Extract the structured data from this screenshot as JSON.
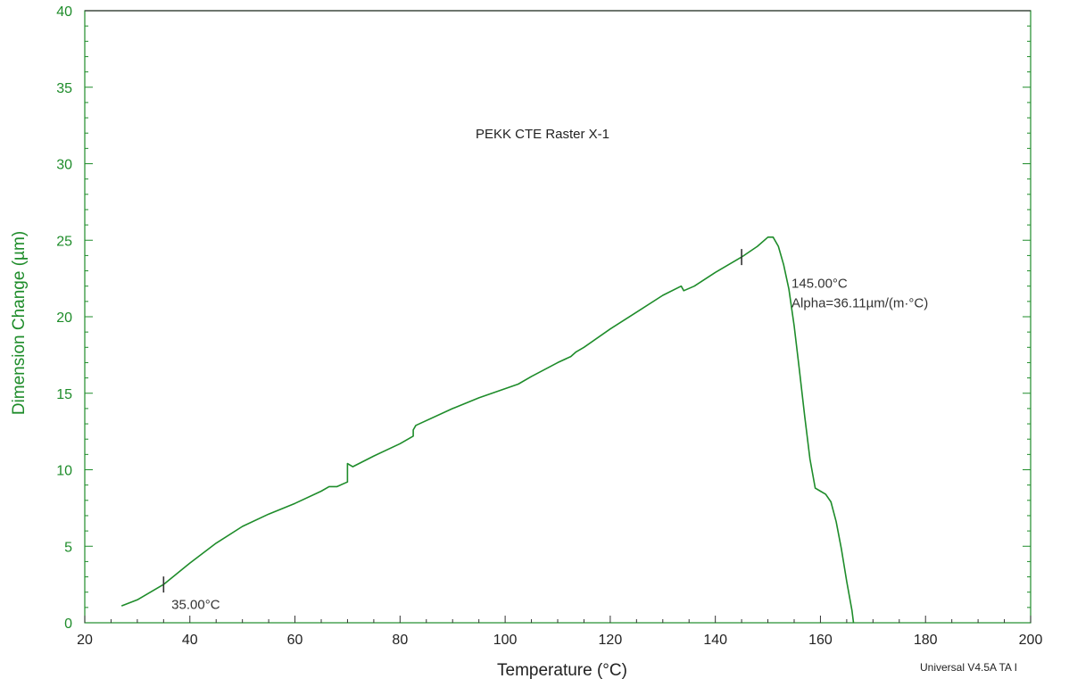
{
  "colors": {
    "accent": "#1e8c2a",
    "text": "#222222",
    "background": "#ffffff"
  },
  "chart_data": {
    "type": "line",
    "title": "PEKK CTE Raster X-1",
    "xlabel": "Temperature (°C)",
    "ylabel": "Dimension Change (µm)",
    "xlim": [
      20,
      200
    ],
    "ylim": [
      0,
      40
    ],
    "x_ticks": [
      20,
      40,
      60,
      80,
      100,
      120,
      140,
      160,
      180,
      200
    ],
    "y_ticks": [
      0,
      5,
      10,
      15,
      20,
      25,
      30,
      35,
      40
    ],
    "grid": false,
    "footer": "Universal V4.5A TA I",
    "series": [
      {
        "points": [
          [
            27,
            1.1
          ],
          [
            30,
            1.5
          ],
          [
            35,
            2.5
          ],
          [
            40,
            3.9
          ],
          [
            45,
            5.2
          ],
          [
            50,
            6.3
          ],
          [
            55,
            7.1
          ],
          [
            60,
            7.8
          ],
          [
            65,
            8.6
          ],
          [
            66.5,
            8.9
          ],
          [
            68,
            8.9
          ],
          [
            70,
            9.2
          ],
          [
            70,
            10.4
          ],
          [
            71,
            10.2
          ],
          [
            75,
            10.9
          ],
          [
            80,
            11.7
          ],
          [
            82.5,
            12.2
          ],
          [
            82.5,
            12.6
          ],
          [
            83,
            12.9
          ],
          [
            90,
            14.0
          ],
          [
            95,
            14.7
          ],
          [
            100,
            15.3
          ],
          [
            102.5,
            15.6
          ],
          [
            105,
            16.1
          ],
          [
            110,
            17.0
          ],
          [
            112.5,
            17.4
          ],
          [
            113.5,
            17.7
          ],
          [
            115,
            18.0
          ],
          [
            120,
            19.2
          ],
          [
            125,
            20.3
          ],
          [
            130,
            21.4
          ],
          [
            133.5,
            22.0
          ],
          [
            134,
            21.7
          ],
          [
            136,
            22.0
          ],
          [
            140,
            22.9
          ],
          [
            145,
            23.9
          ],
          [
            148,
            24.6
          ],
          [
            150,
            25.2
          ],
          [
            151,
            25.2
          ],
          [
            152,
            24.6
          ],
          [
            153,
            23.4
          ],
          [
            154,
            21.8
          ],
          [
            155,
            19.4
          ],
          [
            156,
            16.5
          ],
          [
            157,
            13.5
          ],
          [
            158,
            10.7
          ],
          [
            159,
            8.8
          ],
          [
            160,
            8.6
          ],
          [
            161,
            8.4
          ],
          [
            162,
            7.9
          ],
          [
            163,
            6.6
          ],
          [
            164,
            4.8
          ],
          [
            165,
            2.7
          ],
          [
            166,
            0.8
          ],
          [
            166.3,
            0.0
          ]
        ]
      }
    ],
    "markers": [
      {
        "x": 35,
        "y": 2.5
      },
      {
        "x": 145,
        "y": 23.9
      }
    ],
    "annotations": [
      {
        "text": "35.00°C",
        "x": 36.5,
        "y": 0.9
      },
      {
        "text": "145.00°C",
        "x": 154.5,
        "y": 21.9
      },
      {
        "text": "Alpha=36.11µm/(m·°C)",
        "x": 154.5,
        "y": 20.6
      }
    ]
  }
}
